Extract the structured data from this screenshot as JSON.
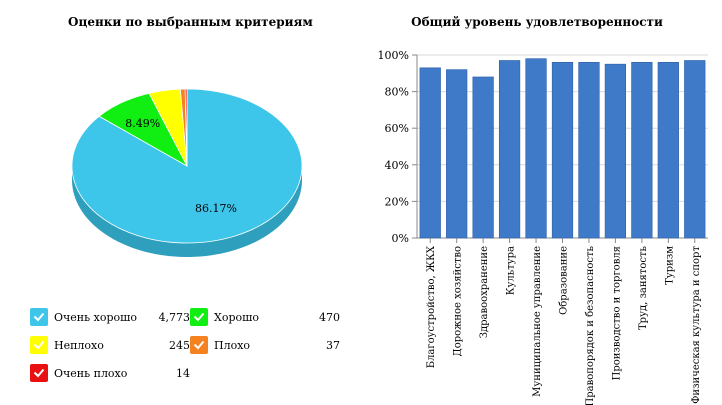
{
  "chart_data": [
    {
      "type": "pie",
      "title": "Оценки по выбранным критериям",
      "slices": [
        {
          "label": "Очень хорошо",
          "count": "4,773",
          "value": 4773,
          "percent_label": "86.17%",
          "color": "#3ec5ea",
          "shade": "#2ea0bd",
          "icon_bg": "#3ec5ea"
        },
        {
          "label": "Хорошо",
          "count": "470",
          "value": 470,
          "percent_label": "8.49%",
          "color": "#11ee11",
          "shade": "#0cb40c",
          "icon_bg": "#11ee11"
        },
        {
          "label": "Неплохо",
          "count": "245",
          "value": 245,
          "percent_label": "",
          "color": "#ffff00",
          "shade": "#c8c800",
          "icon_bg": "#ffff00"
        },
        {
          "label": "Плохо",
          "count": "37",
          "value": 37,
          "percent_label": "",
          "color": "#f58220",
          "shade": "#c06010",
          "icon_bg": "#f58220"
        },
        {
          "label": "Очень плохо",
          "count": "14",
          "value": 14,
          "percent_label": "",
          "color": "#e81010",
          "shade": "#b00000",
          "icon_bg": "#e81010"
        }
      ]
    },
    {
      "type": "bar",
      "title": "Общий уровень удовлетворенности",
      "categories": [
        "Благоустройство, ЖКХ",
        "Дорожное хозяйство",
        "Здравоохранение",
        "Культура",
        "Муниципальное управление",
        "Образование",
        "Правопорядок и безопасность",
        "Производство и торговля",
        "Труд, занятость",
        "Туризм",
        "Физическая культура и спорт"
      ],
      "values": [
        93,
        92,
        88,
        97,
        98,
        96,
        96,
        95,
        96,
        96,
        97
      ],
      "ylim": [
        0,
        100
      ],
      "yticks": [
        "0%",
        "20%",
        "40%",
        "60%",
        "80%",
        "100%"
      ],
      "bar_color": "#3f7ac8",
      "grid": true
    }
  ]
}
